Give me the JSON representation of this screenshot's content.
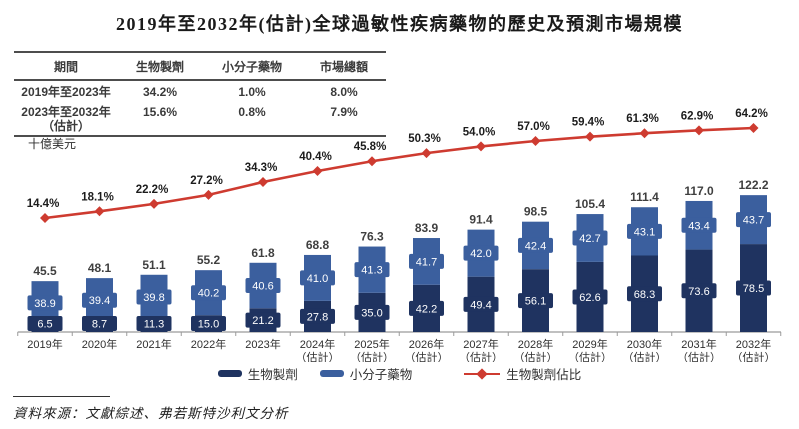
{
  "title": "2019年至2032年(估計)全球過敏性疾病藥物的歷史及預測市場規模",
  "table": {
    "headers": [
      "期間",
      "生物製劑",
      "小分子藥物",
      "市場總額"
    ],
    "rows": [
      {
        "period": "2019年至2023年",
        "period_note": "",
        "biologics": "34.2%",
        "small_molecule": "1.0%",
        "total": "8.0%"
      },
      {
        "period": "2023年至2032年",
        "period_note": "（估計）",
        "biologics": "15.6%",
        "small_molecule": "0.8%",
        "total": "7.9%"
      }
    ]
  },
  "unit_label": "十億美元",
  "chart_data": {
    "type": "bar",
    "subtype": "stacked-bar-with-line",
    "title": "2019年至2032年(估計)全球過敏性疾病藥物的歷史及預測市場規模",
    "ylabel": "十億美元",
    "xlabel": "",
    "ylim": [
      0,
      130
    ],
    "line_ylim_pct": [
      0,
      70
    ],
    "grid": false,
    "legend_position": "bottom",
    "categories": [
      "2019年",
      "2020年",
      "2021年",
      "2022年",
      "2023年",
      "2024年（估計）",
      "2025年（估計）",
      "2026年（估計）",
      "2027年（估計）",
      "2028年（估計）",
      "2029年（估計）",
      "2030年（估計）",
      "2031年（估計）",
      "2032年（估計）"
    ],
    "series": [
      {
        "name": "生物製劑",
        "type": "bar",
        "stack": "total",
        "color": "#1F3360",
        "values": [
          6.5,
          8.7,
          11.3,
          15.0,
          21.2,
          27.8,
          35.0,
          42.2,
          49.4,
          56.1,
          62.6,
          68.3,
          73.6,
          78.5
        ]
      },
      {
        "name": "小分子藥物",
        "type": "bar",
        "stack": "total",
        "color": "#3B5F9E",
        "values": [
          38.9,
          39.4,
          39.8,
          40.2,
          40.6,
          41.0,
          41.3,
          41.7,
          42.0,
          42.4,
          42.7,
          43.1,
          43.4,
          43.7
        ]
      },
      {
        "name": "生物製劑佔比",
        "type": "line",
        "unit": "%",
        "color": "#CE3B30",
        "values": [
          14.4,
          18.1,
          22.2,
          27.2,
          34.3,
          40.4,
          45.8,
          50.3,
          54.0,
          57.0,
          59.4,
          61.3,
          62.9,
          64.2
        ]
      }
    ],
    "totals": [
      45.5,
      48.1,
      51.1,
      55.2,
      61.8,
      68.8,
      76.3,
      83.9,
      91.4,
      98.5,
      105.4,
      111.4,
      117.0,
      122.2
    ]
  },
  "legend": {
    "items": [
      {
        "label": "生物製劑",
        "marker": "rect",
        "color": "#1F3360"
      },
      {
        "label": "小分子藥物",
        "marker": "rect",
        "color": "#3B5F9E"
      },
      {
        "label": "生物製劑佔比",
        "marker": "line-diamond",
        "color": "#CE3B30"
      }
    ]
  },
  "source": "資料來源：文獻綜述、弗若斯特沙利文分析",
  "colors": {
    "dark_blue": "#1F3360",
    "light_blue": "#3B5F9E",
    "red": "#CE3B30",
    "axis": "#9a9a9a",
    "total_label": "#3f3f3f",
    "pct_label": "#1c1c1c"
  }
}
